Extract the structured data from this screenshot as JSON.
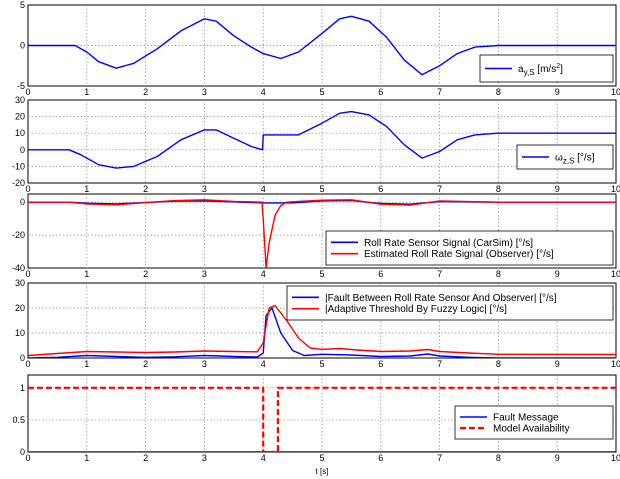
{
  "chart_data": [
    {
      "type": "line",
      "xlim": [
        0,
        10
      ],
      "ylim": [
        -5,
        5
      ],
      "yticks": [
        -5,
        0,
        5
      ],
      "xticks": [
        0,
        1,
        2,
        3,
        4,
        5,
        6,
        7,
        8,
        9,
        10
      ],
      "grid": true,
      "legend_position": "bottom-right",
      "series": [
        {
          "name": "a",
          "name_sub": "y,S",
          "name_unit": " [m/s",
          "name_sup": "2",
          "name_close": "]",
          "color": "#0000ff",
          "x": [
            0,
            0.8,
            1.0,
            1.2,
            1.5,
            1.8,
            2.2,
            2.6,
            3.0,
            3.2,
            3.5,
            3.8,
            4.0,
            4.3,
            4.6,
            5.0,
            5.3,
            5.5,
            5.8,
            6.1,
            6.4,
            6.7,
            7.0,
            7.3,
            7.6,
            8.0,
            10.0
          ],
          "y": [
            0,
            0,
            -0.8,
            -2.0,
            -2.8,
            -2.2,
            -0.4,
            1.8,
            3.3,
            3.0,
            1.2,
            -0.2,
            -1.0,
            -1.6,
            -0.8,
            1.5,
            3.3,
            3.6,
            3.0,
            1.0,
            -1.8,
            -3.6,
            -2.5,
            -1.0,
            -0.2,
            0,
            0
          ]
        }
      ]
    },
    {
      "type": "line",
      "xlim": [
        0,
        10
      ],
      "ylim": [
        -20,
        30
      ],
      "yticks": [
        -20,
        -10,
        0,
        10,
        20,
        30
      ],
      "xticks": [
        0,
        1,
        2,
        3,
        4,
        5,
        6,
        7,
        8,
        9,
        10
      ],
      "grid": true,
      "legend_position": "bottom-right",
      "series": [
        {
          "name": "ω",
          "name_sub": "z,S",
          "name_unit": " [°/s]",
          "color": "#0000ff",
          "x": [
            0,
            0.7,
            0.9,
            1.2,
            1.5,
            1.8,
            2.2,
            2.6,
            3.0,
            3.2,
            3.5,
            3.8,
            3.99,
            4.0,
            4.3,
            4.6,
            5.0,
            5.3,
            5.5,
            5.8,
            6.1,
            6.4,
            6.7,
            7.0,
            7.3,
            7.6,
            8.0,
            10.0
          ],
          "y": [
            0,
            0,
            -3,
            -9,
            -11,
            -10,
            -4,
            6,
            12,
            12,
            7,
            2,
            0,
            9,
            9,
            9,
            16,
            22,
            23,
            21,
            14,
            3,
            -5,
            -1,
            6,
            9,
            10,
            10
          ]
        }
      ]
    },
    {
      "type": "line",
      "xlim": [
        0,
        10
      ],
      "ylim": [
        -40,
        5
      ],
      "yticks": [
        -40,
        -20,
        0
      ],
      "xticks": [
        0,
        1,
        2,
        3,
        4,
        5,
        6,
        7,
        8,
        9,
        10
      ],
      "grid": true,
      "legend_position": "bottom-right",
      "series": [
        {
          "name": "Roll Rate Sensor Signal (CarSim) [°/s]",
          "color": "#0000ff",
          "x": [
            0,
            0.7,
            1.0,
            1.5,
            2.0,
            2.5,
            3.0,
            3.5,
            4.0,
            4.5,
            5.0,
            5.5,
            6.0,
            6.5,
            7.0,
            7.5,
            8.0,
            10.0
          ],
          "y": [
            0,
            0,
            -0.6,
            -1.0,
            -0.2,
            0.6,
            0.8,
            0.2,
            -0.4,
            -0.4,
            0.8,
            1.0,
            -0.8,
            -1.2,
            0.4,
            0.2,
            0,
            0
          ]
        },
        {
          "name": "Estimated Roll Rate Signal (Observer) [°/s]",
          "color": "#ff0000",
          "x": [
            0,
            0.7,
            1.0,
            1.5,
            2.0,
            2.5,
            3.0,
            3.5,
            3.98,
            4.0,
            4.05,
            4.1,
            4.2,
            4.3,
            4.4,
            4.6,
            5.0,
            5.5,
            6.0,
            6.5,
            7.0,
            7.5,
            8.0,
            10.0
          ],
          "y": [
            0,
            0,
            -1.0,
            -1.6,
            -0.2,
            1.0,
            1.5,
            0.5,
            0,
            -10,
            -40,
            -25,
            -8,
            -2,
            0,
            0.5,
            1.2,
            1.5,
            -1.2,
            -1.8,
            0.8,
            0.4,
            0,
            0
          ]
        }
      ]
    },
    {
      "type": "line",
      "xlim": [
        0,
        10
      ],
      "ylim": [
        0,
        30
      ],
      "yticks": [
        0,
        10,
        20,
        30
      ],
      "xticks": [
        0,
        1,
        2,
        3,
        4,
        5,
        6,
        7,
        8,
        9,
        10
      ],
      "grid": true,
      "legend_position": "top-right",
      "series": [
        {
          "name": "|Fault Between Roll Rate Sensor And Observer| [°/s]",
          "color": "#0000ff",
          "x": [
            0,
            0.5,
            1.0,
            1.5,
            2.0,
            2.5,
            3.0,
            3.5,
            3.9,
            4.0,
            4.05,
            4.15,
            4.3,
            4.5,
            4.7,
            5.0,
            5.5,
            6.0,
            6.5,
            6.8,
            7.0,
            7.5,
            8.0,
            10.0
          ],
          "y": [
            0,
            0.3,
            1.0,
            0.6,
            0.3,
            0.5,
            1.0,
            0.6,
            0.4,
            2,
            17,
            20,
            10,
            3,
            1,
            1.5,
            1.2,
            0.6,
            0.8,
            1.6,
            0.8,
            0.3,
            0,
            0
          ]
        },
        {
          "name": "|Adaptive Threshold By Fuzzy Logic| [°/s]",
          "color": "#ff0000",
          "x": [
            0,
            0.5,
            1.0,
            1.5,
            2.0,
            2.5,
            3.0,
            3.5,
            3.9,
            4.0,
            4.1,
            4.2,
            4.4,
            4.6,
            4.8,
            5.0,
            5.3,
            5.6,
            6.0,
            6.5,
            6.8,
            7.0,
            7.5,
            8.0,
            10.0
          ],
          "y": [
            1.0,
            1.8,
            2.6,
            2.4,
            2.2,
            2.4,
            2.8,
            2.6,
            2.5,
            6,
            20,
            21,
            15,
            8,
            4,
            3.5,
            3.8,
            3.2,
            2.6,
            2.8,
            3.4,
            2.6,
            2.0,
            1.5,
            1.4
          ]
        }
      ]
    },
    {
      "type": "line",
      "xlim": [
        0,
        10
      ],
      "ylim": [
        0,
        1.2
      ],
      "yticks": [
        0,
        0.5,
        1
      ],
      "xticks": [
        0,
        1,
        2,
        3,
        4,
        5,
        6,
        7,
        8,
        9,
        10
      ],
      "xlabel": "t [s]",
      "grid": true,
      "legend_position": "bottom-right",
      "series": [
        {
          "name": "Fault Message",
          "color": "#0000ff",
          "x": [
            0,
            10
          ],
          "y": [
            0,
            0
          ]
        },
        {
          "name": "Model Availability",
          "color": "#ff0000",
          "dashed": true,
          "x": [
            0,
            4.0,
            4.0,
            4.25,
            4.25,
            10
          ],
          "y": [
            1,
            1,
            0,
            0,
            1,
            1
          ]
        }
      ]
    }
  ]
}
